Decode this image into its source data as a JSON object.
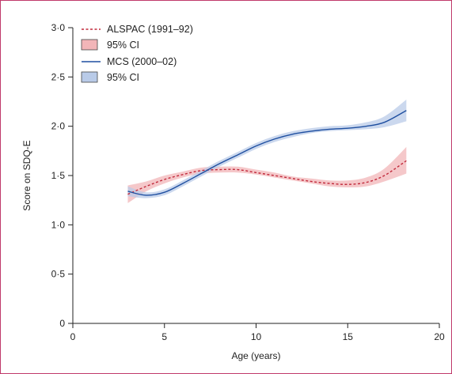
{
  "chart_data": {
    "type": "line",
    "xlabel": "Age (years)",
    "ylabel": "Score on SDQ-E",
    "xlim": [
      0,
      20
    ],
    "ylim": [
      0,
      3
    ],
    "x_ticks": [
      0,
      5,
      10,
      15,
      20
    ],
    "x_tick_labels": [
      "0",
      "5",
      "10",
      "15",
      "20"
    ],
    "y_ticks": [
      0,
      0.5,
      1.0,
      1.5,
      2.0,
      2.5,
      3.0
    ],
    "y_tick_labels": [
      "0",
      "0·5",
      "1·0",
      "1·5",
      "2·0",
      "2·5",
      "3·0"
    ],
    "grid": false,
    "legend_position": "top-left",
    "series": [
      {
        "name": "ALSPAC (1991–92)",
        "ci_name": "95% CI",
        "line_color": "#c0283a",
        "line_style": "dashed",
        "band_color": "#f2b5b8",
        "x": [
          3,
          4,
          5,
          6,
          7,
          8,
          9,
          10,
          11,
          12,
          13,
          14,
          15,
          16,
          17,
          18.2
        ],
        "y": [
          1.31,
          1.39,
          1.46,
          1.51,
          1.55,
          1.56,
          1.56,
          1.53,
          1.5,
          1.47,
          1.44,
          1.42,
          1.41,
          1.43,
          1.5,
          1.65
        ],
        "lower": [
          1.22,
          1.34,
          1.42,
          1.48,
          1.52,
          1.53,
          1.53,
          1.51,
          1.48,
          1.45,
          1.42,
          1.39,
          1.38,
          1.39,
          1.44,
          1.52
        ],
        "upper": [
          1.4,
          1.44,
          1.5,
          1.54,
          1.58,
          1.59,
          1.59,
          1.56,
          1.53,
          1.49,
          1.47,
          1.45,
          1.45,
          1.48,
          1.57,
          1.79
        ]
      },
      {
        "name": "MCS (2000–02)",
        "ci_name": "95% CI",
        "line_color": "#1f4fa0",
        "line_style": "solid",
        "band_color": "#b9cbe8",
        "x": [
          3,
          4,
          5,
          6,
          7,
          8,
          9,
          10,
          11,
          12,
          13,
          14,
          15,
          16,
          17,
          18.2
        ],
        "y": [
          1.34,
          1.3,
          1.33,
          1.42,
          1.52,
          1.62,
          1.71,
          1.8,
          1.87,
          1.92,
          1.95,
          1.97,
          1.98,
          2.0,
          2.04,
          2.16
        ],
        "lower": [
          1.29,
          1.27,
          1.3,
          1.39,
          1.49,
          1.59,
          1.68,
          1.77,
          1.84,
          1.89,
          1.93,
          1.95,
          1.96,
          1.97,
          1.99,
          2.05
        ],
        "upper": [
          1.39,
          1.33,
          1.36,
          1.45,
          1.55,
          1.65,
          1.74,
          1.83,
          1.9,
          1.95,
          1.98,
          2.0,
          2.01,
          2.04,
          2.1,
          2.27
        ]
      }
    ]
  }
}
